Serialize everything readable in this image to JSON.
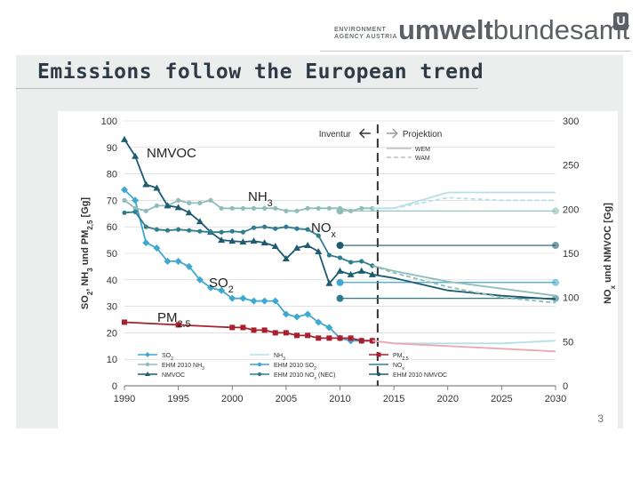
{
  "header": {
    "agency_line1": "ENVIRONMENT",
    "agency_line2": "AGENCY AUSTRIA",
    "brand_bold": "umwelt",
    "brand_regular": "bundesamt",
    "logo_glyph": "U"
  },
  "slide": {
    "title": "Emissions follow the European trend",
    "page_number": "3"
  },
  "colors": {
    "so2": "#3fa8d0",
    "ehm_nh3": "#8fbdb9",
    "nh3_proj": "#b7dfe7",
    "nmvoc": "#1f5b70",
    "nox": "#2f7d8e",
    "pm25": "#a8202e",
    "grid": "#d0d0d0"
  },
  "chart_data": {
    "type": "line",
    "x_ticks": [
      1990,
      1995,
      2000,
      2005,
      2010,
      2015,
      2020,
      2025,
      2030
    ],
    "xlim": [
      1990,
      2030
    ],
    "y_left": {
      "label_parts": [
        "SO",
        "2",
        ", NH",
        "3",
        " und PM",
        "2,5",
        " [Gg]"
      ],
      "ticks": [
        0,
        10,
        20,
        30,
        40,
        50,
        60,
        70,
        80,
        90,
        100
      ],
      "ylim": [
        0,
        100
      ]
    },
    "y_right": {
      "label_parts": [
        "NO",
        "x",
        " und NMVOC [Gg]"
      ],
      "ticks": [
        0,
        50,
        100,
        150,
        200,
        250,
        300
      ],
      "ylim": [
        0,
        300
      ]
    },
    "phases": {
      "inventory": "Inventur",
      "projection": "Projektion",
      "split_year": 2013,
      "wem": "WEM",
      "wam": "WAM"
    },
    "annotations": [
      {
        "id": "nmvoc",
        "parts": [
          "NMVOC"
        ]
      },
      {
        "id": "nh3",
        "parts": [
          "NH",
          "3"
        ]
      },
      {
        "id": "nox",
        "parts": [
          "NO",
          "x"
        ]
      },
      {
        "id": "so2",
        "parts": [
          "SO",
          "2"
        ]
      },
      {
        "id": "pm25",
        "parts": [
          "PM",
          "2.5"
        ]
      }
    ],
    "legend": [
      {
        "parts": [
          "SO",
          "2"
        ],
        "color": "#3fa8d0",
        "marker": "diamond"
      },
      {
        "parts": [
          "NH",
          "3"
        ],
        "color": "#b7dfe7",
        "marker": "none"
      },
      {
        "parts": [
          "PM",
          "2,5"
        ],
        "color": "#a8202e",
        "marker": "square"
      },
      {
        "parts": [
          "EHM 2010 NH",
          "3"
        ],
        "color": "#8fbdb9",
        "marker": "dot"
      },
      {
        "parts": [
          "EHM 2010 SO",
          "2"
        ],
        "color": "#3fa8d0",
        "marker": "dot"
      },
      {
        "parts": [
          "NO",
          "x"
        ],
        "color": "#2f7d8e",
        "marker": "none"
      },
      {
        "parts": [
          "NMVOC"
        ],
        "color": "#1f5b70",
        "marker": "triangle"
      },
      {
        "parts": [
          "EHM 2010 NO",
          "x",
          " (NEC)"
        ],
        "color": "#2f7d8e",
        "marker": "dot"
      },
      {
        "parts": [
          "EHM 2010 NMVOC"
        ],
        "color": "#1f5b70",
        "marker": "dot"
      }
    ],
    "series": [
      {
        "name": "SO2",
        "axis": "left",
        "color": "#3fa8d0",
        "marker": "diamond",
        "x": [
          1990,
          1991,
          1992,
          1993,
          1994,
          1995,
          1996,
          1997,
          1998,
          1999,
          2000,
          2001,
          2002,
          2003,
          2004,
          2005,
          2006,
          2007,
          2008,
          2009,
          2010,
          2011,
          2012,
          2013
        ],
        "y": [
          74,
          70,
          54,
          52,
          47,
          47,
          45,
          40,
          37,
          36,
          33,
          33,
          32,
          32,
          32,
          27,
          26,
          27,
          24,
          22,
          18,
          17,
          17,
          17
        ]
      },
      {
        "name": "SO2 WEM",
        "axis": "left",
        "color": "#b7dfe7",
        "dash": "",
        "x": [
          2013,
          2015,
          2020,
          2025,
          2030
        ],
        "y": [
          17,
          16,
          16,
          16,
          17
        ]
      },
      {
        "name": "NH3",
        "axis": "left",
        "color": "#8fbdb9",
        "marker": "dot",
        "x": [
          1990,
          1991,
          1992,
          1993,
          1994,
          1995,
          1996,
          1997,
          1998,
          1999,
          2000,
          2001,
          2002,
          2003,
          2004,
          2005,
          2006,
          2007,
          2008,
          2009,
          2010,
          2011,
          2012,
          2013
        ],
        "y": [
          70,
          67,
          66,
          68,
          68,
          70,
          69,
          69,
          70,
          67,
          67,
          67,
          67,
          67,
          67,
          66,
          66,
          67,
          67,
          67,
          67,
          66,
          67,
          67
        ]
      },
      {
        "name": "NH3 WEM",
        "axis": "left",
        "color": "#b7dfe7",
        "dash": "",
        "x": [
          2013,
          2015,
          2020,
          2025,
          2030
        ],
        "y": [
          67,
          67,
          73,
          73,
          73
        ]
      },
      {
        "name": "NH3 WAM",
        "axis": "left",
        "color": "#b7dfe7",
        "dash": "5,3",
        "x": [
          2013,
          2015,
          2020,
          2025,
          2030
        ],
        "y": [
          67,
          67,
          71,
          70,
          70
        ]
      },
      {
        "name": "NMVOC",
        "axis": "right",
        "color": "#1f5b70",
        "marker": "triangle",
        "x": [
          1990,
          1991,
          1992,
          1993,
          1994,
          1995,
          1996,
          1997,
          1998,
          1999,
          2000,
          2001,
          2002,
          2003,
          2004,
          2005,
          2006,
          2007,
          2008,
          2009,
          2010,
          2011,
          2012,
          2013
        ],
        "y": [
          279,
          260,
          228,
          224,
          204,
          202,
          196,
          186,
          174,
          165,
          164,
          163,
          164,
          162,
          158,
          144,
          156,
          159,
          152,
          116,
          130,
          126,
          130,
          126
        ]
      },
      {
        "name": "NMVOC WEM",
        "axis": "right",
        "color": "#1f5b70",
        "dash": "",
        "x": [
          2013,
          2015,
          2020,
          2025,
          2030
        ],
        "y": [
          126,
          122,
          108,
          102,
          98
        ]
      },
      {
        "name": "NOx",
        "axis": "right",
        "color": "#2f7d8e",
        "marker": "dot",
        "x": [
          1990,
          1991,
          1992,
          1993,
          1994,
          1995,
          1996,
          1997,
          1998,
          1999,
          2000,
          2001,
          2002,
          2003,
          2004,
          2005,
          2006,
          2007,
          2008,
          2009,
          2010,
          2011,
          2012,
          2013
        ],
        "y": [
          196,
          197,
          180,
          177,
          176,
          177,
          176,
          175,
          174,
          174,
          175,
          174,
          179,
          180,
          178,
          180,
          178,
          177,
          170,
          148,
          145,
          140,
          141,
          136
        ]
      },
      {
        "name": "NOx WEM",
        "axis": "right",
        "color": "#8fbdb9",
        "dash": "",
        "x": [
          2013,
          2015,
          2020,
          2025,
          2030
        ],
        "y": [
          136,
          130,
          118,
          110,
          102
        ]
      },
      {
        "name": "NOx WAM",
        "axis": "right",
        "color": "#8fbdb9",
        "dash": "5,3",
        "x": [
          2013,
          2015,
          2020,
          2025,
          2030
        ],
        "y": [
          136,
          128,
          112,
          100,
          94
        ]
      },
      {
        "name": "PM2,5",
        "axis": "left",
        "color": "#a8202e",
        "marker": "square",
        "x": [
          1990,
          1995,
          2000,
          2001,
          2002,
          2003,
          2004,
          2005,
          2006,
          2007,
          2008,
          2009,
          2010,
          2011,
          2012,
          2013
        ],
        "y": [
          24,
          23,
          22,
          22,
          21,
          21,
          20,
          20,
          19,
          19,
          18,
          18,
          18,
          18,
          17,
          17
        ]
      },
      {
        "name": "PM2,5 WEM",
        "axis": "left",
        "color": "#e8a9b0",
        "dash": "",
        "x": [
          2013,
          2015,
          2020,
          2025,
          2030
        ],
        "y": [
          17,
          16,
          15,
          14,
          13
        ]
      }
    ],
    "ceilings": [
      {
        "name": "EHM 2010 NH3",
        "axis": "left",
        "value": 66,
        "color": "#8fbdb9"
      },
      {
        "name": "EHM 2010 NOx (NEC)",
        "axis": "left",
        "value": 33,
        "color": "#2f7d8e"
      },
      {
        "name": "EHM 2010 SO2",
        "axis": "left",
        "value": 39,
        "color": "#3fa8d0"
      },
      {
        "name": "EHM 2010 NMVOC",
        "axis": "right",
        "value": 159,
        "color": "#1f5b70"
      }
    ]
  }
}
